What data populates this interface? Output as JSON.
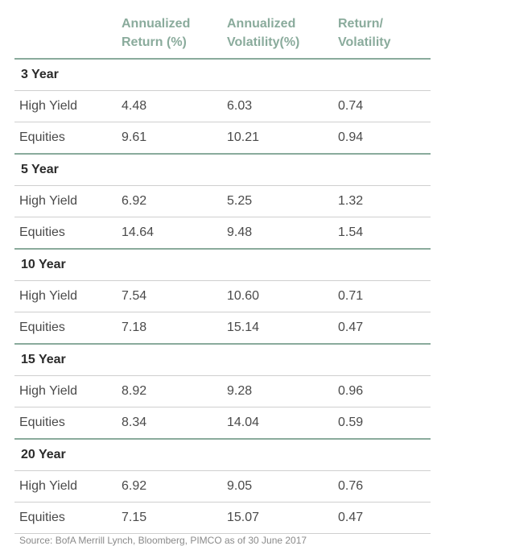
{
  "chart_data": {
    "type": "table",
    "columns": [
      "",
      "Annualized\nReturn (%)",
      "Annualized\nVolatility(%)",
      "Return/\nVolatility"
    ],
    "groups": [
      {
        "label": "3 Year",
        "rows": [
          {
            "name": "High Yield",
            "return": "4.48",
            "volatility": "6.03",
            "ratio": "0.74"
          },
          {
            "name": "Equities",
            "return": "9.61",
            "volatility": "10.21",
            "ratio": "0.94"
          }
        ]
      },
      {
        "label": "5 Year",
        "rows": [
          {
            "name": "High Yield",
            "return": "6.92",
            "volatility": "5.25",
            "ratio": "1.32"
          },
          {
            "name": "Equities",
            "return": "14.64",
            "volatility": "9.48",
            "ratio": "1.54"
          }
        ]
      },
      {
        "label": "10 Year",
        "rows": [
          {
            "name": "High Yield",
            "return": "7.54",
            "volatility": "10.60",
            "ratio": "0.71"
          },
          {
            "name": "Equities",
            "return": "7.18",
            "volatility": "15.14",
            "ratio": "0.47"
          }
        ]
      },
      {
        "label": "15 Year",
        "rows": [
          {
            "name": "High Yield",
            "return": "8.92",
            "volatility": "9.28",
            "ratio": "0.96"
          },
          {
            "name": "Equities",
            "return": "8.34",
            "volatility": "14.04",
            "ratio": "0.59"
          }
        ]
      },
      {
        "label": "20 Year",
        "rows": [
          {
            "name": "High Yield",
            "return": "6.92",
            "volatility": "9.05",
            "ratio": "0.76"
          },
          {
            "name": "Equities",
            "return": "7.15",
            "volatility": "15.07",
            "ratio": "0.47"
          }
        ]
      }
    ],
    "source": "Source: BofA Merrill Lynch, Bloomberg, PIMCO as of 30 June 2017"
  },
  "colors": {
    "accent": "#8aab9c",
    "divider": "#cfcfcf",
    "text": "#4a4a4a",
    "group_text": "#2b2b2b"
  }
}
